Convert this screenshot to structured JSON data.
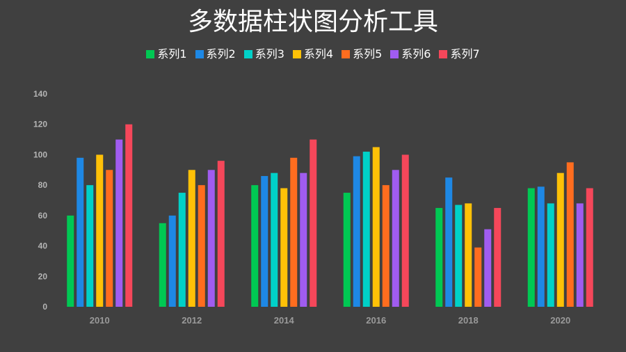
{
  "chart_data": {
    "type": "bar",
    "title": "多数据柱状图分析工具",
    "categories": [
      "2010",
      "2012",
      "2014",
      "2016",
      "2018",
      "2020"
    ],
    "ylim": [
      0,
      140
    ],
    "yticks": [
      "0",
      "20",
      "40",
      "60",
      "80",
      "100",
      "120",
      "140"
    ],
    "grid": false,
    "legend_position": "top",
    "series": [
      {
        "name": "系列1",
        "color": "#00c853",
        "values": [
          60,
          55,
          80,
          75,
          65,
          78
        ]
      },
      {
        "name": "系列2",
        "color": "#1e88e5",
        "values": [
          98,
          60,
          86,
          99,
          85,
          79
        ]
      },
      {
        "name": "系列3",
        "color": "#00d1c8",
        "values": [
          80,
          75,
          88,
          102,
          67,
          68
        ]
      },
      {
        "name": "系列4",
        "color": "#ffc107",
        "values": [
          100,
          90,
          78,
          105,
          68,
          88
        ]
      },
      {
        "name": "系列5",
        "color": "#ff6d1f",
        "values": [
          90,
          80,
          98,
          80,
          39,
          95
        ]
      },
      {
        "name": "系列6",
        "color": "#a05cf0",
        "values": [
          110,
          90,
          88,
          90,
          51,
          68
        ]
      },
      {
        "name": "系列7",
        "color": "#f5475a",
        "values": [
          120,
          96,
          110,
          100,
          65,
          78
        ]
      }
    ]
  }
}
